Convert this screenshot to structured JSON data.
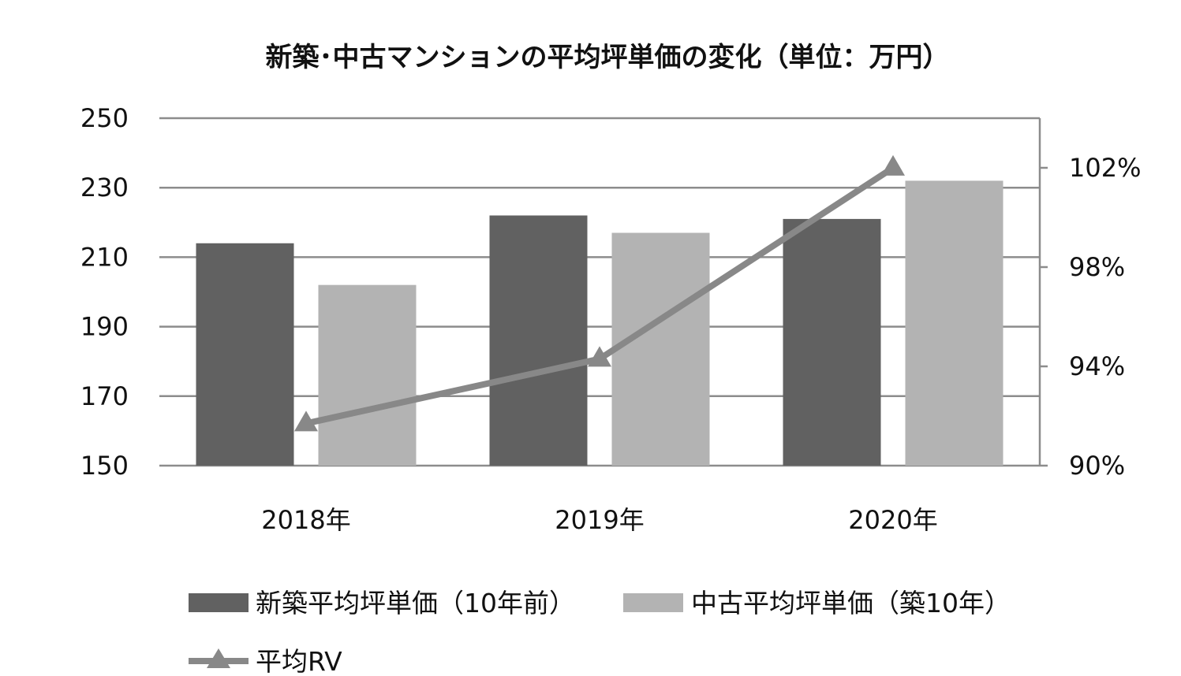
{
  "chart_data": {
    "type": "bar",
    "title": "新築･中古マンションの平均坪単価の変化（単位：万円）",
    "categories": [
      "2018年",
      "2019年",
      "2020年"
    ],
    "series": [
      {
        "name": "新築平均坪単価（10年前）",
        "kind": "bar",
        "axis": "left",
        "color": "#616161",
        "values": [
          214,
          222,
          221
        ]
      },
      {
        "name": "中古平均坪単価（築10年）",
        "kind": "bar",
        "axis": "left",
        "color": "#b3b3b3",
        "values": [
          202,
          217,
          232
        ]
      },
      {
        "name": "平均RV",
        "kind": "line",
        "axis": "right",
        "marker": "triangle",
        "color": "#888888",
        "values": [
          0.917,
          0.943,
          1.02
        ]
      }
    ],
    "ylim": [
      150,
      250
    ],
    "yticks": [
      "150",
      "170",
      "190",
      "210",
      "230",
      "250"
    ],
    "y2lim": [
      0.9,
      1.04
    ],
    "y2ticks": [
      "90%",
      "94%",
      "98%",
      "102%"
    ],
    "y2tick_values": [
      0.9,
      0.94,
      0.98,
      1.02
    ],
    "grid": true,
    "legend_position": "bottom"
  }
}
